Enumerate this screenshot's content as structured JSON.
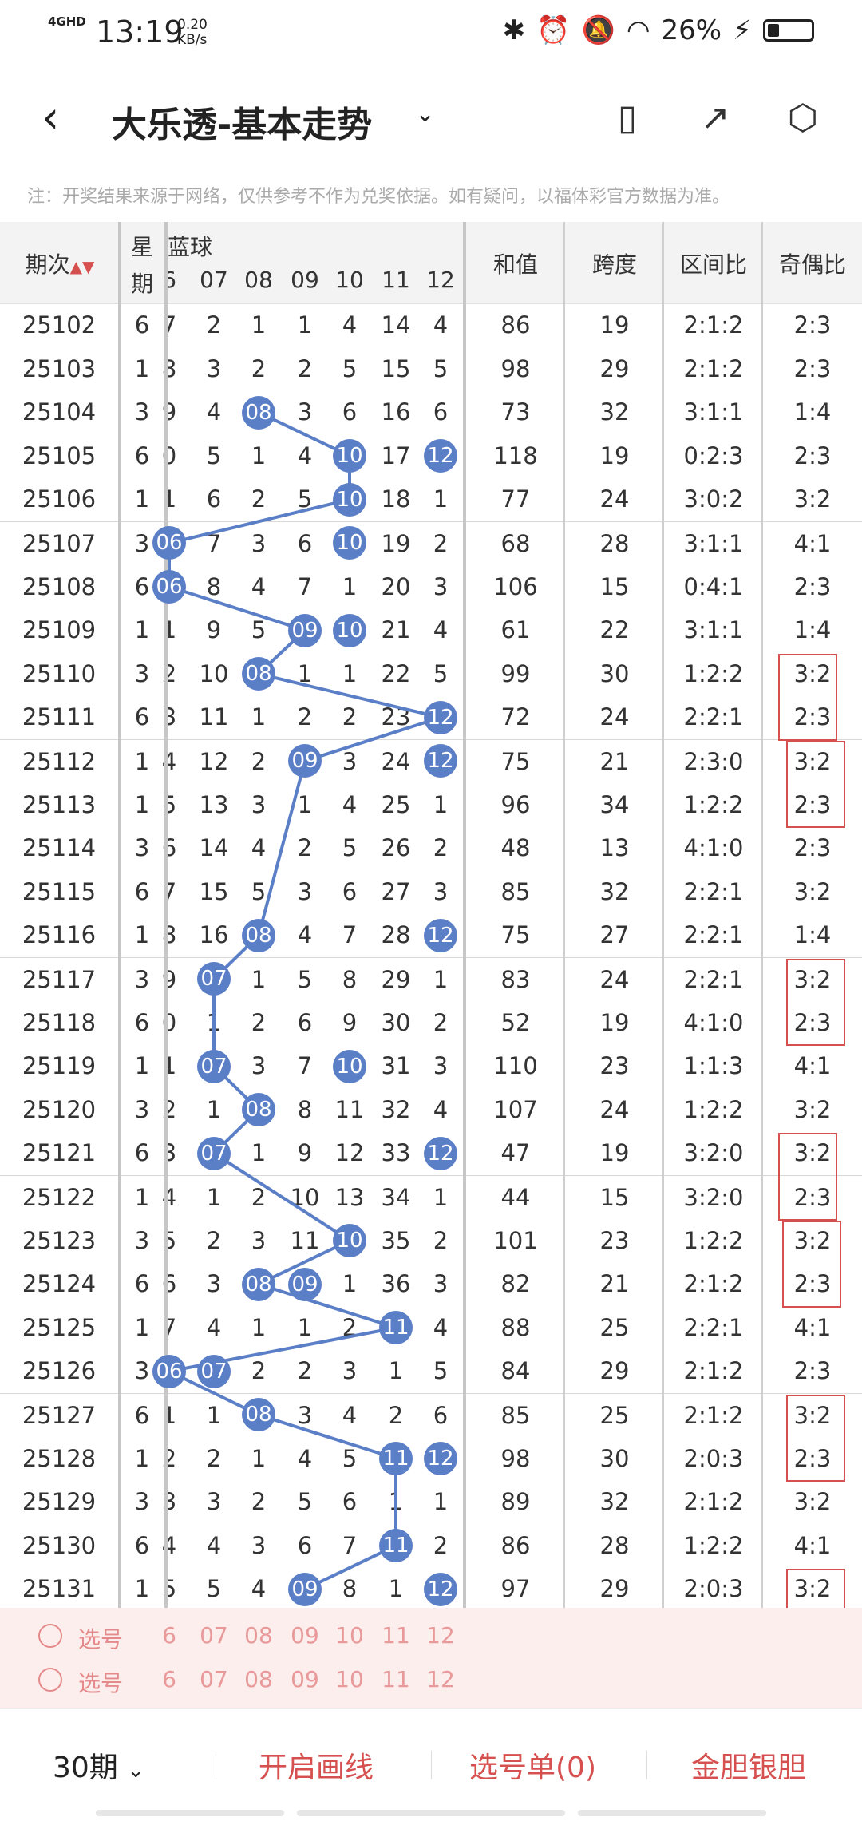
{
  "status_bar": {
    "network": "4GHD",
    "time": "13:19",
    "net_speed": "0.20",
    "net_unit": "KB/s",
    "battery": "26%",
    "battery_fraction": 0.26,
    "icons": [
      "bluetooth-icon",
      "alarm-icon",
      "mute-bell-icon",
      "wifi-icon",
      "charging-icon"
    ]
  },
  "header": {
    "back_icon": "back-arrow-icon",
    "title": "大乐透-基本走势",
    "dropdown_icon": "chevron-down-icon",
    "icons": [
      "phone-rotate-icon",
      "share-icon",
      "settings-icon"
    ]
  },
  "notice": "注：开奖结果来源于网络，仅供参考不作为兑奖依据。如有疑问，以福体彩官方数据为准。",
  "table": {
    "headers": {
      "period": "期次",
      "weekday_top": "星",
      "weekday_bottom": "期",
      "blue_ball": "蓝球",
      "sum": "和值",
      "span": "跨度",
      "zone_ratio": "区间比",
      "odd_even_ratio": "奇偶比"
    },
    "blue_numbers": [
      "6",
      "07",
      "08",
      "09",
      "10",
      "11",
      "12"
    ],
    "rows": [
      {
        "period": "25102",
        "week": "6",
        "b": [
          "7",
          "2",
          "1",
          "1",
          "4",
          "14",
          "4"
        ],
        "sum": "86",
        "span": "19",
        "zone": "2:1:2",
        "oe": "2:3"
      },
      {
        "period": "25103",
        "week": "1",
        "b": [
          "8",
          "3",
          "2",
          "2",
          "5",
          "15",
          "5"
        ],
        "sum": "98",
        "span": "29",
        "zone": "2:1:2",
        "oe": "2:3"
      },
      {
        "period": "25104",
        "week": "3",
        "b": [
          "9",
          "4",
          "08",
          "3",
          "6",
          "16",
          "6"
        ],
        "sum": "73",
        "span": "32",
        "zone": "3:1:1",
        "oe": "1:4"
      },
      {
        "period": "25105",
        "week": "6",
        "b": [
          "0",
          "5",
          "1",
          "4",
          "10",
          "17",
          "12"
        ],
        "sum": "118",
        "span": "19",
        "zone": "0:2:3",
        "oe": "2:3"
      },
      {
        "period": "25106",
        "week": "1",
        "b": [
          "1",
          "6",
          "2",
          "5",
          "10",
          "18",
          "1"
        ],
        "sum": "77",
        "span": "24",
        "zone": "3:0:2",
        "oe": "3:2"
      },
      {
        "period": "25107",
        "week": "3",
        "b": [
          "06",
          "7",
          "3",
          "6",
          "10",
          "19",
          "2"
        ],
        "sum": "68",
        "span": "28",
        "zone": "3:1:1",
        "oe": "4:1"
      },
      {
        "period": "25108",
        "week": "6",
        "b": [
          "06",
          "8",
          "4",
          "7",
          "1",
          "20",
          "3"
        ],
        "sum": "106",
        "span": "15",
        "zone": "0:4:1",
        "oe": "2:3"
      },
      {
        "period": "25109",
        "week": "1",
        "b": [
          "1",
          "9",
          "5",
          "09",
          "10",
          "21",
          "4"
        ],
        "sum": "61",
        "span": "22",
        "zone": "3:1:1",
        "oe": "1:4"
      },
      {
        "period": "25110",
        "week": "3",
        "b": [
          "2",
          "10",
          "08",
          "1",
          "1",
          "22",
          "5"
        ],
        "sum": "99",
        "span": "30",
        "zone": "1:2:2",
        "oe": "3:2"
      },
      {
        "period": "25111",
        "week": "6",
        "b": [
          "3",
          "11",
          "1",
          "2",
          "2",
          "23",
          "12"
        ],
        "sum": "72",
        "span": "24",
        "zone": "2:2:1",
        "oe": "2:3"
      },
      {
        "period": "25112",
        "week": "1",
        "b": [
          "4",
          "12",
          "2",
          "09",
          "3",
          "24",
          "12"
        ],
        "sum": "75",
        "span": "21",
        "zone": "2:3:0",
        "oe": "3:2"
      },
      {
        "period": "25113",
        "week": "1",
        "b": [
          "5",
          "13",
          "3",
          "1",
          "4",
          "25",
          "1"
        ],
        "sum": "96",
        "span": "34",
        "zone": "1:2:2",
        "oe": "2:3"
      },
      {
        "period": "25114",
        "week": "3",
        "b": [
          "6",
          "14",
          "4",
          "2",
          "5",
          "26",
          "2"
        ],
        "sum": "48",
        "span": "13",
        "zone": "4:1:0",
        "oe": "2:3"
      },
      {
        "period": "25115",
        "week": "6",
        "b": [
          "7",
          "15",
          "5",
          "3",
          "6",
          "27",
          "3"
        ],
        "sum": "85",
        "span": "32",
        "zone": "2:2:1",
        "oe": "3:2"
      },
      {
        "period": "25116",
        "week": "1",
        "b": [
          "8",
          "16",
          "08",
          "4",
          "7",
          "28",
          "12"
        ],
        "sum": "75",
        "span": "27",
        "zone": "2:2:1",
        "oe": "1:4"
      },
      {
        "period": "25117",
        "week": "3",
        "b": [
          "9",
          "07",
          "1",
          "5",
          "8",
          "29",
          "1"
        ],
        "sum": "83",
        "span": "24",
        "zone": "2:2:1",
        "oe": "3:2"
      },
      {
        "period": "25118",
        "week": "6",
        "b": [
          "0",
          "1",
          "2",
          "6",
          "9",
          "30",
          "2"
        ],
        "sum": "52",
        "span": "19",
        "zone": "4:1:0",
        "oe": "2:3"
      },
      {
        "period": "25119",
        "week": "1",
        "b": [
          "1",
          "07",
          "3",
          "7",
          "10",
          "31",
          "3"
        ],
        "sum": "110",
        "span": "23",
        "zone": "1:1:3",
        "oe": "4:1"
      },
      {
        "period": "25120",
        "week": "3",
        "b": [
          "2",
          "1",
          "08",
          "8",
          "11",
          "32",
          "4"
        ],
        "sum": "107",
        "span": "24",
        "zone": "1:2:2",
        "oe": "3:2"
      },
      {
        "period": "25121",
        "week": "6",
        "b": [
          "3",
          "07",
          "1",
          "9",
          "12",
          "33",
          "12"
        ],
        "sum": "47",
        "span": "19",
        "zone": "3:2:0",
        "oe": "3:2"
      },
      {
        "period": "25122",
        "week": "1",
        "b": [
          "4",
          "1",
          "2",
          "10",
          "13",
          "34",
          "1"
        ],
        "sum": "44",
        "span": "15",
        "zone": "3:2:0",
        "oe": "2:3"
      },
      {
        "period": "25123",
        "week": "3",
        "b": [
          "5",
          "2",
          "3",
          "11",
          "10",
          "35",
          "2"
        ],
        "sum": "101",
        "span": "23",
        "zone": "1:2:2",
        "oe": "3:2"
      },
      {
        "period": "25124",
        "week": "6",
        "b": [
          "6",
          "3",
          "08",
          "09",
          "1",
          "36",
          "3"
        ],
        "sum": "82",
        "span": "21",
        "zone": "2:1:2",
        "oe": "2:3"
      },
      {
        "period": "25125",
        "week": "1",
        "b": [
          "7",
          "4",
          "1",
          "1",
          "2",
          "11",
          "4"
        ],
        "sum": "88",
        "span": "25",
        "zone": "2:2:1",
        "oe": "4:1"
      },
      {
        "period": "25126",
        "week": "3",
        "b": [
          "06",
          "07",
          "2",
          "2",
          "3",
          "1",
          "5"
        ],
        "sum": "84",
        "span": "29",
        "zone": "2:1:2",
        "oe": "2:3"
      },
      {
        "period": "25127",
        "week": "6",
        "b": [
          "1",
          "1",
          "08",
          "3",
          "4",
          "2",
          "6"
        ],
        "sum": "85",
        "span": "25",
        "zone": "2:1:2",
        "oe": "3:2"
      },
      {
        "period": "25128",
        "week": "1",
        "b": [
          "2",
          "2",
          "1",
          "4",
          "5",
          "11",
          "12"
        ],
        "sum": "98",
        "span": "30",
        "zone": "2:0:3",
        "oe": "2:3"
      },
      {
        "period": "25129",
        "week": "3",
        "b": [
          "3",
          "3",
          "2",
          "5",
          "6",
          "1",
          "1"
        ],
        "sum": "89",
        "span": "32",
        "zone": "2:1:2",
        "oe": "3:2"
      },
      {
        "period": "25130",
        "week": "6",
        "b": [
          "4",
          "4",
          "3",
          "6",
          "7",
          "11",
          "2"
        ],
        "sum": "86",
        "span": "28",
        "zone": "1:2:2",
        "oe": "4:1"
      },
      {
        "period": "25131",
        "week": "1",
        "b": [
          "5",
          "5",
          "4",
          "09",
          "8",
          "1",
          "12"
        ],
        "sum": "97",
        "span": "29",
        "zone": "2:0:3",
        "oe": "3:2"
      }
    ]
  },
  "pick_rows": [
    {
      "label": "选号",
      "numbers": [
        "6",
        "07",
        "08",
        "09",
        "10",
        "11",
        "12"
      ]
    },
    {
      "label": "选号",
      "numbers": [
        "6",
        "07",
        "08",
        "09",
        "10",
        "11",
        "12"
      ]
    }
  ],
  "bottom_bar": {
    "periods": "30期",
    "periods_icon": "chevron-down-icon",
    "draw_line": "开启画线",
    "pick_list": "选号单(0)",
    "gold_silver": "金胆银胆"
  },
  "colors": {
    "ball_blue": "#5b7fc7",
    "accent_red": "#d65050",
    "header_gray": "#f3f3f3"
  }
}
